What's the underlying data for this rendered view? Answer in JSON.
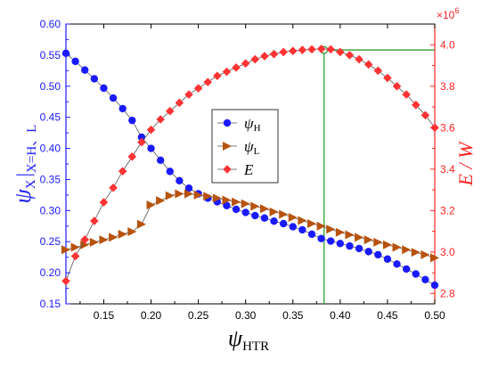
{
  "chart_data": {
    "type": "line",
    "x": [
      0.11,
      0.12,
      0.13,
      0.14,
      0.15,
      0.16,
      0.17,
      0.18,
      0.19,
      0.2,
      0.21,
      0.22,
      0.23,
      0.24,
      0.25,
      0.26,
      0.27,
      0.28,
      0.29,
      0.3,
      0.31,
      0.32,
      0.33,
      0.34,
      0.35,
      0.36,
      0.37,
      0.38,
      0.39,
      0.4,
      0.41,
      0.42,
      0.43,
      0.44,
      0.45,
      0.46,
      0.47,
      0.48,
      0.49,
      0.5
    ],
    "xlabel": "ψ",
    "xlabel_sub": "HTR",
    "xlim": [
      0.11,
      0.5
    ],
    "xticks": [
      "0.15",
      "0.20",
      "0.25",
      "0.30",
      "0.35",
      "0.40",
      "0.45",
      "0.50"
    ],
    "xtick_values": [
      0.15,
      0.2,
      0.25,
      0.3,
      0.35,
      0.4,
      0.45,
      0.5
    ],
    "ylabel": "ψ",
    "ylabel_sub": "X",
    "ylabel_suffix": "|",
    "ylabel_sub2": "X=H、L",
    "ylim": [
      0.15,
      0.6
    ],
    "yticks": [
      "0.15",
      "0.20",
      "0.25",
      "0.30",
      "0.35",
      "0.40",
      "0.45",
      "0.50",
      "0.55",
      "0.60"
    ],
    "ytick_values": [
      0.15,
      0.2,
      0.25,
      0.3,
      0.35,
      0.4,
      0.45,
      0.5,
      0.55,
      0.6
    ],
    "y2label": "E / W",
    "y2_multiplier": "×10",
    "y2_multiplier_exp": "6",
    "y2lim": [
      2.75,
      4.1
    ],
    "y2ticks": [
      "2.8",
      "3.0",
      "3.2",
      "3.4",
      "3.6",
      "3.8",
      "4.0"
    ],
    "y2tick_values": [
      2.8,
      3.0,
      3.2,
      3.4,
      3.6,
      3.8,
      4.0
    ],
    "series": [
      {
        "name": "ψ",
        "name_sub": "H",
        "axis": "left",
        "marker": "circle",
        "color": "#1a1aff",
        "values": [
          0.553,
          0.54,
          0.526,
          0.512,
          0.497,
          0.481,
          0.464,
          0.445,
          0.418,
          0.4,
          0.381,
          0.363,
          0.348,
          0.336,
          0.327,
          0.32,
          0.314,
          0.308,
          0.302,
          0.297,
          0.292,
          0.288,
          0.283,
          0.279,
          0.274,
          0.269,
          0.262,
          0.255,
          0.251,
          0.247,
          0.243,
          0.239,
          0.234,
          0.229,
          0.222,
          0.214,
          0.206,
          0.198,
          0.189,
          0.18
        ]
      },
      {
        "name": "ψ",
        "name_sub": "L",
        "axis": "left",
        "marker": "triangle-right",
        "color": "#b8520d",
        "values": [
          0.237,
          0.241,
          0.245,
          0.249,
          0.253,
          0.257,
          0.262,
          0.266,
          0.278,
          0.309,
          0.316,
          0.324,
          0.327,
          0.327,
          0.325,
          0.323,
          0.32,
          0.317,
          0.314,
          0.311,
          0.307,
          0.303,
          0.298,
          0.294,
          0.289,
          0.284,
          0.279,
          0.275,
          0.27,
          0.265,
          0.261,
          0.257,
          0.253,
          0.249,
          0.245,
          0.241,
          0.237,
          0.233,
          0.229,
          0.224
        ]
      },
      {
        "name": "E",
        "axis": "right",
        "marker": "diamond",
        "color": "#ff3333",
        "values": [
          2.86,
          2.98,
          3.06,
          3.15,
          3.24,
          3.31,
          3.39,
          3.46,
          3.53,
          3.59,
          3.64,
          3.68,
          3.72,
          3.76,
          3.79,
          3.82,
          3.85,
          3.87,
          3.89,
          3.91,
          3.93,
          3.945,
          3.955,
          3.965,
          3.97,
          3.975,
          3.978,
          3.98,
          3.978,
          3.965,
          3.95,
          3.93,
          3.905,
          3.875,
          3.84,
          3.8,
          3.76,
          3.71,
          3.66,
          3.6
        ]
      }
    ],
    "annotation": {
      "x": 0.383,
      "y2": 3.975,
      "color": "#2e9e2e",
      "note_marker": "open-circle"
    },
    "legend_placement": "center",
    "grid": false
  }
}
